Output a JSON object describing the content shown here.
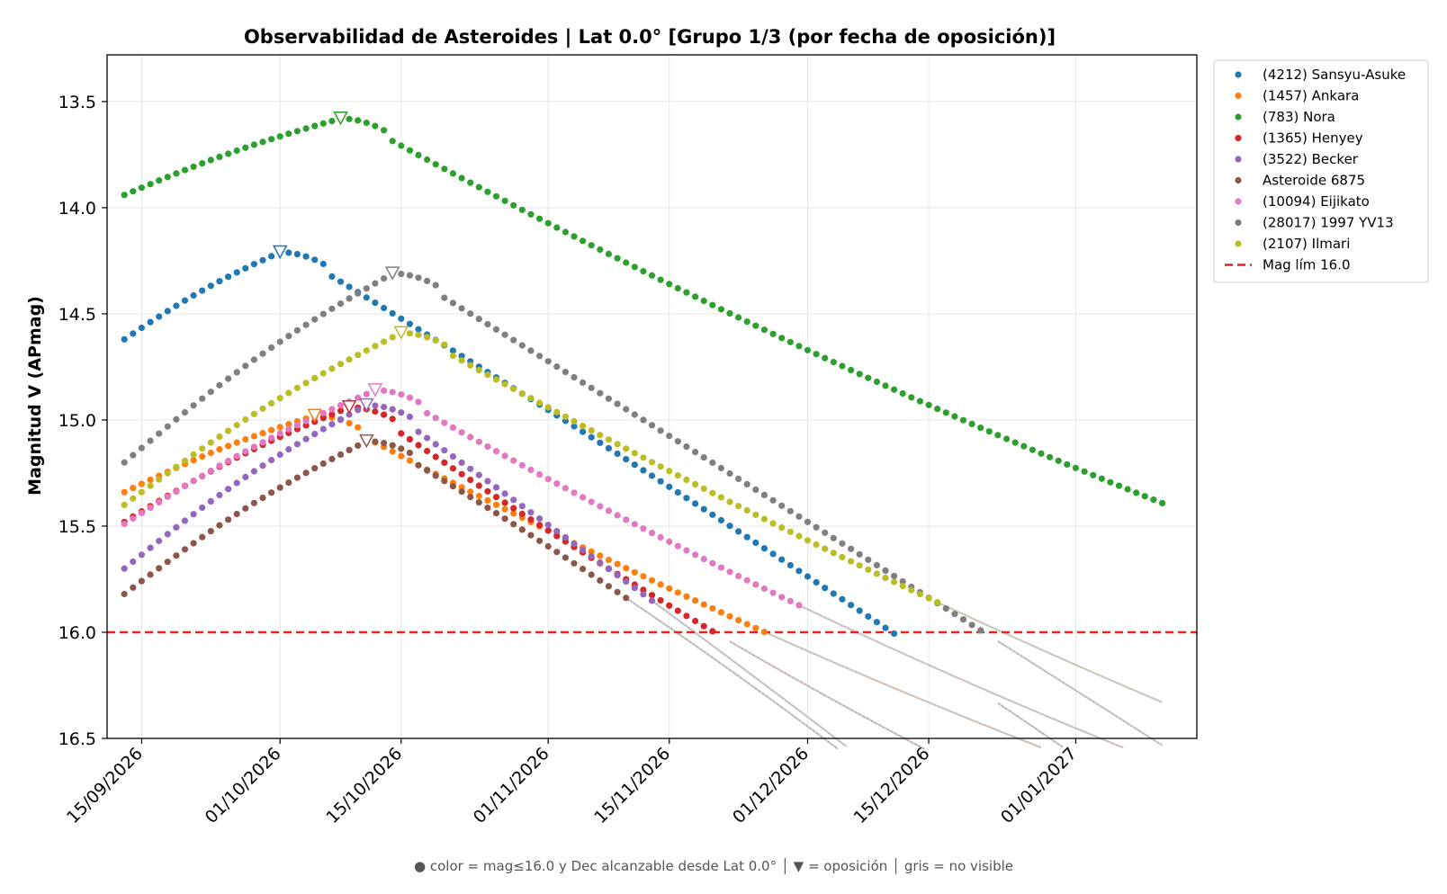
{
  "chart_data": {
    "type": "scatter",
    "title": "Observabilidad de Asteroides  |  Lat 0.0°  [Grupo 1/3 (por fecha de oposición)]",
    "ylabel": "Magnitud V (APmag)",
    "xlabel": "",
    "footnote": "● color = mag≤16.0 y Dec alcanzable desde Lat 0.0°  │  ▼ = oposición  │  gris = no visible",
    "x_range": [
      "2026-09-11",
      "2027-01-15"
    ],
    "ylim": [
      16.5,
      13.28
    ],
    "y_inverted": true,
    "yticks": [
      13.5,
      14.0,
      14.5,
      15.0,
      15.5,
      16.0,
      16.5
    ],
    "ytick_labels": [
      "13.5",
      "14.0",
      "14.5",
      "15.0",
      "15.5",
      "16.0",
      "16.5"
    ],
    "xticks": [
      "2026-09-15",
      "2026-10-01",
      "2026-10-15",
      "2026-11-01",
      "2026-11-15",
      "2026-12-01",
      "2026-12-15",
      "2027-01-01"
    ],
    "xtick_labels": [
      "15/09/2026",
      "01/10/2026",
      "15/10/2026",
      "01/11/2026",
      "15/11/2026",
      "01/12/2026",
      "15/12/2026",
      "01/01/2027"
    ],
    "grid": true,
    "legend_position": "outside-top-right",
    "limit_line": {
      "label": "Mag lím 16.0",
      "value": 16.0,
      "color": "#e8211e"
    },
    "x_start": "2026-09-13",
    "x_end": "2027-01-11",
    "gray_color": "#c4c4c4",
    "series": [
      {
        "name": "(4212) Sansyu-Asuke",
        "color": "#1f77b4",
        "start_mag": 14.62,
        "peak_date": "2026-10-01",
        "peak_mag": 14.21,
        "rise_rate": 0.0225,
        "fall_rate": 0.0245,
        "fall_curve": 1.8e-05,
        "visible_until": "2026-12-23"
      },
      {
        "name": "(1457) Ankara",
        "color": "#ff7f0e",
        "start_mag": 15.34,
        "peak_date": "2026-10-05",
        "peak_mag": 14.98,
        "rise_rate": 0.0165,
        "fall_rate": 0.022,
        "fall_curve": -3.67e-05,
        "visible_until": "2026-11-26"
      },
      {
        "name": "(783) Nora",
        "color": "#2ca02c",
        "start_mag": 13.94,
        "peak_date": "2026-10-08",
        "peak_mag": 13.58,
        "rise_rate": 0.0118,
        "fall_rate": 0.0225,
        "fall_curve": -3.3e-05,
        "visible_until": "2027-01-11"
      },
      {
        "name": "(1365) Henyey",
        "color": "#d62728",
        "start_mag": 15.48,
        "peak_date": "2026-10-09",
        "peak_mag": 14.94,
        "rise_rate": 0.0209,
        "fall_rate": 0.0285,
        "fall_curve": -5.43e-05,
        "visible_until": "2026-11-22"
      },
      {
        "name": "(3522) Becker",
        "color": "#9467bd",
        "start_mag": 15.7,
        "peak_date": "2026-10-11",
        "peak_mag": 14.93,
        "rise_rate": 0.028,
        "fall_rate": 0.0286,
        "fall_curve": 2.18e-05,
        "visible_until": "2026-11-13"
      },
      {
        "name": "Asteroide 6875",
        "color": "#8c564b",
        "start_mag": 15.82,
        "peak_date": "2026-10-11",
        "peak_mag": 15.1,
        "rise_rate": 0.0257,
        "fall_rate": 0.0238,
        "fall_curve": 6.2e-05,
        "visible_until": "2026-11-10"
      },
      {
        "name": "(10094) Eijikato",
        "color": "#e377c2",
        "start_mag": 15.49,
        "peak_date": "2026-10-12",
        "peak_mag": 14.86,
        "rise_rate": 0.0217,
        "fall_rate": 0.0232,
        "fall_curve": -3.92e-05,
        "visible_until": "2026-11-30"
      },
      {
        "name": "(28017) 1997 YV13",
        "color": "#7f7f7f",
        "start_mag": 15.2,
        "peak_date": "2026-10-14",
        "peak_mag": 14.31,
        "rise_rate": 0.0278,
        "fall_rate": 0.0248,
        "fall_curve": 6.35e-06,
        "visible_until": "2026-12-23"
      },
      {
        "name": "(2107) Ilmari",
        "color": "#bcbd22",
        "start_mag": 15.4,
        "peak_date": "2026-10-15",
        "peak_mag": 14.59,
        "rise_rate": 0.024,
        "fall_rate": 0.0229,
        "fall_curve": -3.18e-05,
        "visible_until": "2026-12-16"
      }
    ]
  }
}
